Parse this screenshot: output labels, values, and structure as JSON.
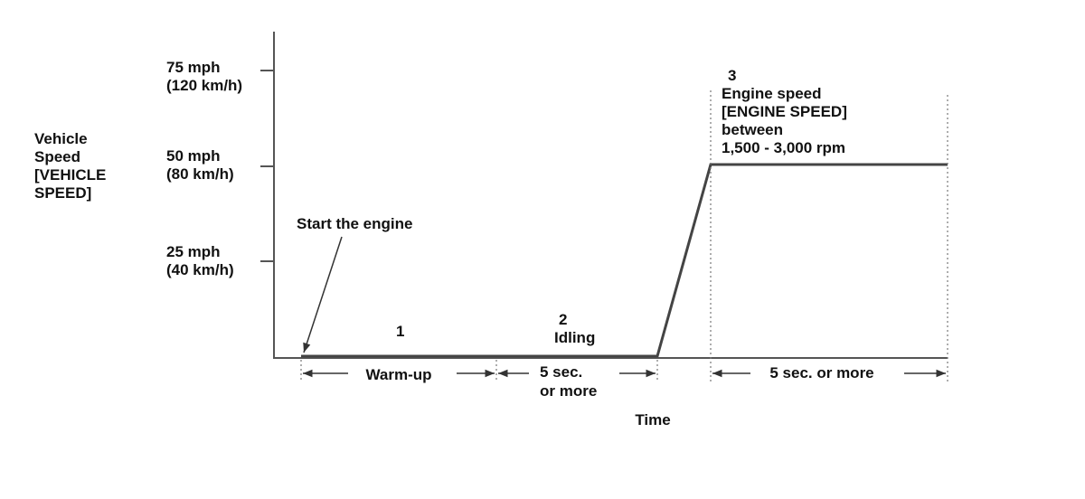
{
  "y_axis": {
    "label": [
      "Vehicle",
      "Speed",
      "[VEHICLE",
      "SPEED]"
    ],
    "ticks": [
      [
        "75 mph",
        "(120 km/h)"
      ],
      [
        "50 mph",
        "(80 km/h)"
      ],
      [
        "25 mph",
        "(40 km/h)"
      ]
    ]
  },
  "x_axis": {
    "label": "Time"
  },
  "annotation": "Start the engine",
  "phases": [
    {
      "number": "1",
      "duration": [
        "Warm-up"
      ]
    },
    {
      "number": "2",
      "name": "Idling",
      "duration": [
        "5 sec.",
        "or more"
      ]
    },
    {
      "number": "3",
      "description": [
        "Engine speed",
        "[ENGINE SPEED]",
        "between",
        "1,500 - 3,000 rpm"
      ],
      "duration": [
        "5 sec. or more"
      ]
    }
  ]
}
